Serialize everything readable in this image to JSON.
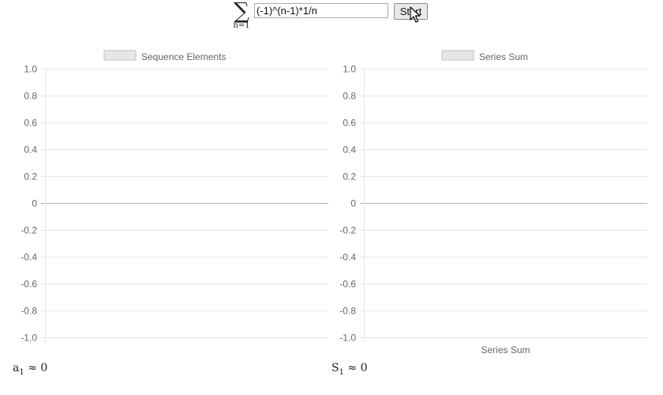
{
  "formula": {
    "sum_symbol": "∑",
    "sum_lower": "n=1",
    "input_value": "(-1)^(n-1)*1/n",
    "start_label": "Start"
  },
  "results": {
    "sequence_symbol": "a",
    "sequence_index": "1",
    "sequence_value": "≈ 0",
    "series_symbol": "S",
    "series_index": "1",
    "series_value": "≈ 0"
  },
  "colors": {
    "grid": "#e6e6e6",
    "zero_line": "#b3b3b3",
    "axis_text": "#666666",
    "legend_box": "#e6e6e6"
  },
  "chart_data": [
    {
      "type": "line",
      "legend": "Sequence Elements",
      "xlabel": "",
      "ylim": [
        -1.0,
        1.0
      ],
      "yticks": [
        "1.0",
        "0.8",
        "0.6",
        "0.4",
        "0.2",
        "0",
        "-0.2",
        "-0.4",
        "-0.6",
        "-0.8",
        "-1.0"
      ],
      "grid": true,
      "legend_position": "top",
      "series": []
    },
    {
      "type": "line",
      "legend": "Series Sum",
      "xlabel": "Series Sum",
      "ylim": [
        -1.0,
        1.0
      ],
      "yticks": [
        "1.0",
        "0.8",
        "0.6",
        "0.4",
        "0.2",
        "0",
        "-0.2",
        "-0.4",
        "-0.6",
        "-0.8",
        "-1.0"
      ],
      "grid": true,
      "legend_position": "top",
      "series": []
    }
  ]
}
